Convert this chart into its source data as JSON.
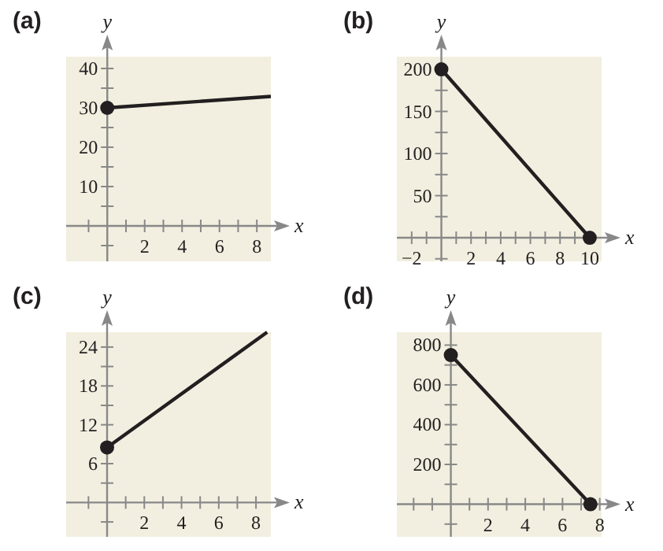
{
  "chart_data": [
    {
      "type": "line",
      "title": "(a)",
      "xlabel": "x",
      "ylabel": "y",
      "xlim": [
        -2.2,
        8.75
      ],
      "ylim": [
        -9,
        43
      ],
      "grid": false,
      "xticks": [
        {
          "value": -1,
          "label": null
        },
        {
          "value": 1,
          "label": null
        },
        2,
        {
          "value": 3,
          "label": null
        },
        4,
        {
          "value": 5,
          "label": null
        },
        6,
        {
          "value": 7,
          "label": null
        },
        8
      ],
      "yticks": [
        {
          "value": -5,
          "label": null
        },
        {
          "value": 5,
          "label": null
        },
        10,
        {
          "value": 15,
          "label": null
        },
        20,
        {
          "value": 25,
          "label": null
        },
        30,
        {
          "value": 35,
          "label": null
        },
        40
      ],
      "series": [
        {
          "marker": "none",
          "color": "#231f20",
          "x": [
            0,
            8.75
          ],
          "values": [
            30,
            32.9
          ]
        },
        {
          "type": "scatter",
          "marker": "circle",
          "color": "#231f20",
          "x": [
            0
          ],
          "values": [
            30
          ]
        }
      ]
    },
    {
      "type": "line",
      "title": "(b)",
      "xlabel": "x",
      "ylabel": "y",
      "xlim": [
        -3,
        10.8
      ],
      "ylim": [
        -28,
        215
      ],
      "grid": false,
      "xticks": [
        {
          "value": -2,
          "label": "−2"
        },
        {
          "value": -1,
          "label": null
        },
        {
          "value": 1,
          "label": null
        },
        2,
        {
          "value": 3,
          "label": null
        },
        4,
        {
          "value": 5,
          "label": null
        },
        6,
        {
          "value": 7,
          "label": null
        },
        8,
        {
          "value": 9,
          "label": null
        },
        10
      ],
      "yticks": [
        {
          "value": -25,
          "label": null
        },
        {
          "value": 25,
          "label": null
        },
        50,
        {
          "value": 75,
          "label": null
        },
        100,
        {
          "value": 125,
          "label": null
        },
        150,
        {
          "value": 175,
          "label": null
        },
        200
      ],
      "series": [
        {
          "marker": "circle",
          "color": "#231f20",
          "x": [
            0,
            10
          ],
          "values": [
            200,
            0
          ]
        }
      ]
    },
    {
      "type": "line",
      "title": "(c)",
      "xlabel": "x",
      "ylabel": "y",
      "xlim": [
        -2.2,
        8.8
      ],
      "ylim": [
        -5.3,
        26.3
      ],
      "grid": false,
      "xticks": [
        {
          "value": -1,
          "label": null
        },
        {
          "value": 1,
          "label": null
        },
        2,
        {
          "value": 3,
          "label": null
        },
        4,
        {
          "value": 5,
          "label": null
        },
        6,
        {
          "value": 7,
          "label": null
        },
        8
      ],
      "yticks": [
        {
          "value": -3,
          "label": null
        },
        {
          "value": 3,
          "label": null
        },
        6,
        {
          "value": 9,
          "label": null
        },
        12,
        {
          "value": 15,
          "label": null
        },
        18,
        {
          "value": 21,
          "label": null
        },
        24
      ],
      "series": [
        {
          "marker": "none",
          "color": "#231f20",
          "x": [
            0,
            8.6
          ],
          "values": [
            8.5,
            26.3
          ]
        },
        {
          "type": "scatter",
          "marker": "circle",
          "color": "#231f20",
          "x": [
            0
          ],
          "values": [
            8.5
          ]
        }
      ]
    },
    {
      "type": "line",
      "title": "(d)",
      "xlabel": "x",
      "ylabel": "y",
      "xlim": [
        -2.9,
        8.1
      ],
      "ylim": [
        -164,
        865
      ],
      "grid": false,
      "xticks": [
        {
          "value": -2,
          "label": null
        },
        {
          "value": -1,
          "label": null
        },
        {
          "value": 1,
          "label": null
        },
        2,
        {
          "value": 3,
          "label": null
        },
        4,
        {
          "value": 5,
          "label": null
        },
        6,
        {
          "value": 7,
          "label": null
        },
        8
      ],
      "yticks": [
        {
          "value": -100,
          "label": null
        },
        {
          "value": 100,
          "label": null
        },
        200,
        {
          "value": 300,
          "label": null
        },
        400,
        {
          "value": 500,
          "label": null
        },
        600,
        {
          "value": 700,
          "label": null
        },
        800
      ],
      "series": [
        {
          "marker": "circle",
          "color": "#231f20",
          "x": [
            0,
            7.5
          ],
          "values": [
            750,
            0
          ]
        }
      ]
    }
  ]
}
